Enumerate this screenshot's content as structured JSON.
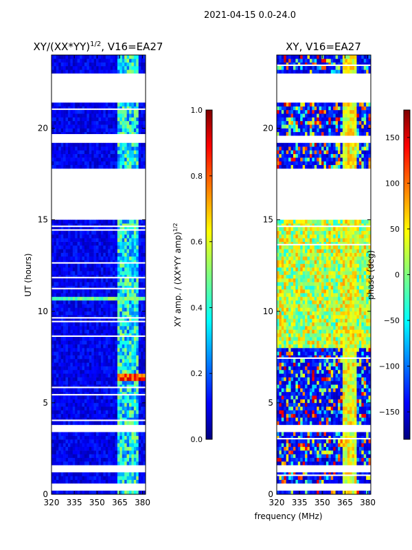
{
  "figure": {
    "suptitle": "2021-04-15 0.0-24.0"
  },
  "chart_data": [
    {
      "type": "heatmap",
      "title": "XY/(XX*YY)",
      "title_exponent": "1/2",
      "title_suffix": ", V16=EA27",
      "xlabel": "",
      "ylabel": "UT (hours)",
      "xlim": [
        320,
        382
      ],
      "ylim": [
        0,
        24
      ],
      "xticks": [
        "320",
        "335",
        "350",
        "365",
        "380"
      ],
      "xtick_values": [
        320,
        335,
        350,
        365,
        380
      ],
      "yticks": [
        "0",
        "5",
        "10",
        "15",
        "20"
      ],
      "ytick_values": [
        0,
        5,
        10,
        15,
        20
      ],
      "colorbar": {
        "label": "XY amp. / (XX*YY amp)",
        "label_exponent": "1/2",
        "range": [
          0.0,
          1.0
        ],
        "ticks": [
          "0.0",
          "0.2",
          "0.4",
          "0.6",
          "0.8",
          "1.0"
        ],
        "tick_values": [
          0.0,
          0.2,
          0.4,
          0.6,
          0.8,
          1.0
        ],
        "colormap": "jet"
      },
      "data_gaps_ut": [
        [
          21.4,
          23.0
        ],
        [
          15.0,
          17.7
        ],
        [
          19.2,
          19.6
        ],
        [
          1.3,
          1.6
        ],
        [
          0.3,
          0.5
        ],
        [
          3.5,
          3.8
        ]
      ],
      "features": [
        {
          "x_range": [
            363,
            378
          ],
          "level": 0.35,
          "note": "elevated amplitude band 363-378 MHz"
        },
        {
          "ut": 6.4,
          "x_range": [
            363,
            380
          ],
          "level": 0.85,
          "note": "strong row near 6.4 h"
        },
        {
          "ut": 10.7,
          "x_range": [
            320,
            382
          ],
          "level": 0.45,
          "note": "elevated row near 10.7 h"
        }
      ]
    },
    {
      "type": "heatmap",
      "title": "XY, V16=EA27",
      "xlabel": "frequency (MHz)",
      "ylabel": "",
      "xlim": [
        320,
        382
      ],
      "ylim": [
        0,
        24
      ],
      "xticks": [
        "320",
        "335",
        "350",
        "365",
        "380"
      ],
      "xtick_values": [
        320,
        335,
        350,
        365,
        380
      ],
      "yticks": [
        "0",
        "5",
        "10",
        "15",
        "20"
      ],
      "ytick_values": [
        0,
        5,
        10,
        15,
        20
      ],
      "colorbar": {
        "label": "phase (deg)",
        "range": [
          -180,
          180
        ],
        "ticks": [
          "−150",
          "−100",
          "−50",
          "0",
          "50",
          "100",
          "150"
        ],
        "tick_values": [
          -150,
          -100,
          -50,
          0,
          50,
          100,
          150
        ],
        "colormap": "jet"
      },
      "data_gaps_ut": [
        [
          21.4,
          23.0
        ],
        [
          15.0,
          17.7
        ],
        [
          19.2,
          19.6
        ],
        [
          1.3,
          1.6
        ],
        [
          0.3,
          0.5
        ],
        [
          3.5,
          3.8
        ]
      ],
      "features": [
        {
          "ut_range": [
            8,
            15
          ],
          "level_deg": 30,
          "note": "phase near 0 to +60 deg"
        },
        {
          "ut_range": [
            0,
            7
          ],
          "level_deg": -160,
          "note": "noisy phase wrapping"
        }
      ]
    }
  ]
}
